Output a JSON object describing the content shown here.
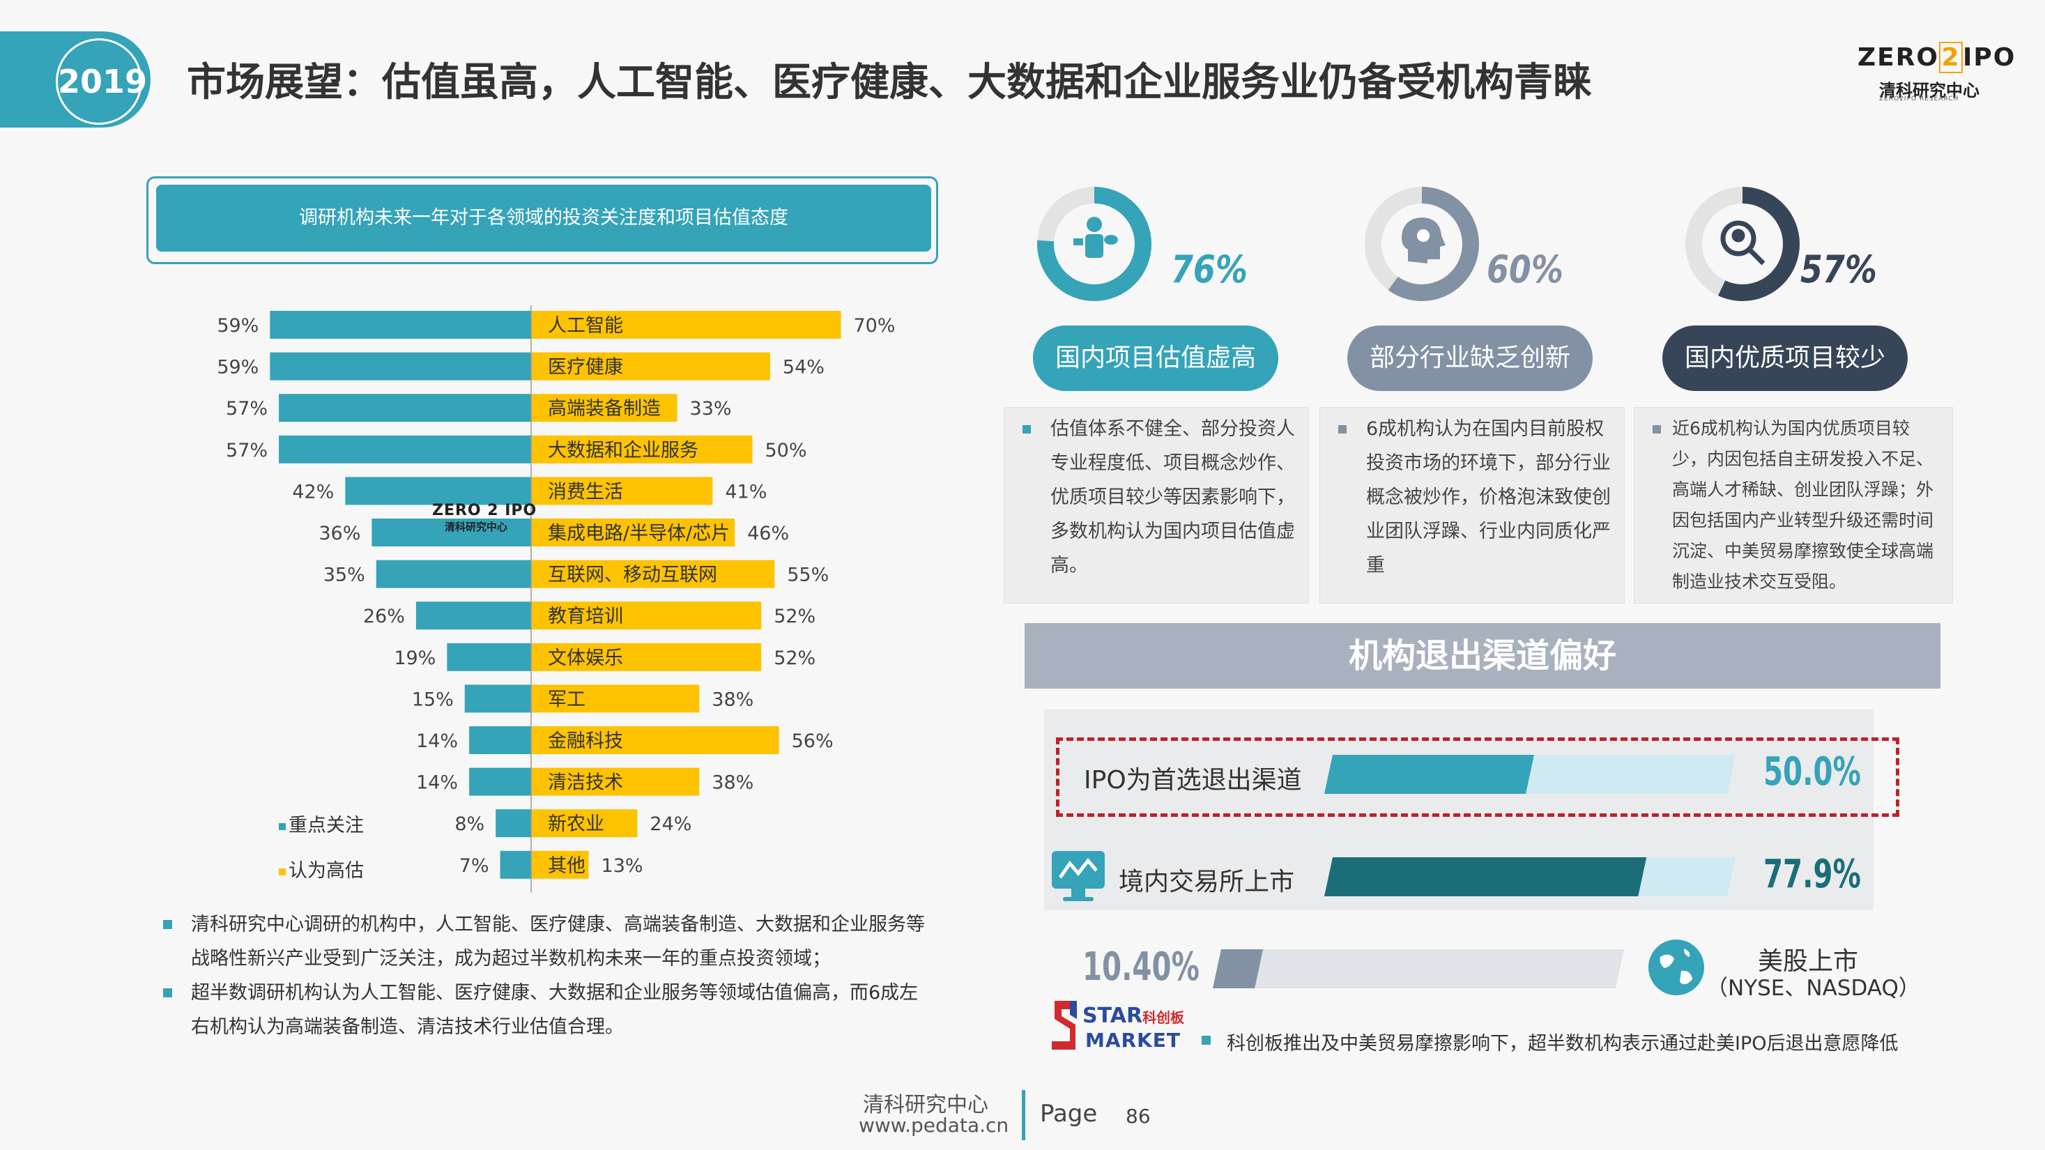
{
  "header": {
    "year": "2019",
    "title": "市场展望：估值虽高，人工智能、医疗健康、大数据和企业服务业仍备受机构青睐",
    "logo_main_left": "ZERO",
    "logo_main_mid": "2",
    "logo_main_right": "IPO",
    "logo_sub": "清科研究中心",
    "logo_tiny": "ZERO2IPO RESEARCH"
  },
  "chart_data": {
    "type": "bar",
    "title": "调研机构未来一年对于各领域的投资关注度和项目估值态度",
    "categories": [
      "人工智能",
      "医疗健康",
      "高端装备制造",
      "大数据和企业服务",
      "消费生活",
      "集成电路/半导体/芯片",
      "互联网、移动互联网",
      "教育培训",
      "文体娱乐",
      "军工",
      "金融科技",
      "清洁技术",
      "新农业",
      "其他"
    ],
    "series": [
      {
        "name": "重点关注",
        "color": "#35a3b8",
        "values": [
          59,
          59,
          57,
          57,
          42,
          36,
          35,
          26,
          19,
          15,
          14,
          14,
          8,
          7
        ],
        "labels": [
          "59%",
          "59%",
          "57%",
          "57%",
          "42%",
          "36%",
          "35%",
          "26%",
          "19%",
          "15%",
          "14%",
          "14%",
          "8%",
          "7%"
        ]
      },
      {
        "name": "认为高估",
        "color": "#fdc300",
        "values": [
          70,
          54,
          33,
          50,
          41,
          46,
          55,
          52,
          52,
          38,
          56,
          38,
          24,
          13
        ],
        "labels": [
          "70%",
          "54%",
          "33%",
          "50%",
          "41%",
          "46%",
          "55%",
          "52%",
          "52%",
          "38%",
          "56%",
          "38%",
          "24%",
          "13%"
        ]
      }
    ],
    "legend_position": "bottom-left"
  },
  "watermark": {
    "line1": "ZERO 2 IPO",
    "line2": "清科研究中心"
  },
  "notes": [
    "清科研究中心调研的机构中，人工智能、医疗健康、高端装备制造、大数据和企业服务等战略性新兴产业受到广泛关注，成为超过半数机构未来一年的重点投资领域；",
    "超半数调研机构认为人工智能、医疗健康、大数据和企业服务等领域估值偏高，而6成左右机构认为高端装备制造、清洁技术行业估值合理。"
  ],
  "donuts": [
    {
      "value": 76,
      "label": "76%",
      "color": "#35a3b8",
      "icon": "business-person-icon",
      "pill": "国内项目估值虚高",
      "pill_color": "#35a3b8",
      "text": "估值体系不健全、部分投资人专业程度低、项目概念炒作、优质项目较少等因素影响下，多数机构认为国内项目估值虚高。"
    },
    {
      "value": 60,
      "label": "60%",
      "color": "#8391a5",
      "icon": "head-lightbulb-icon",
      "pill": "部分行业缺乏创新",
      "pill_color": "#8391a5",
      "text": "6成机构认为在国内目前股权投资市场的环境下，部分行业概念被炒作，价格泡沫致使创业团队浮躁、行业内同质化严重"
    },
    {
      "value": 57,
      "label": "57%",
      "color": "#374558",
      "icon": "search-location-icon",
      "pill": "国内优质项目较少",
      "pill_color": "#374558",
      "text": "近6成机构认为国内优质项目较少，内因包括自主研发投入不足、高端人才稀缺、创业团队浮躁；外因包括国内产业转型升级还需时间沉淀、中美贸易摩擦致使全球高端制造业技术交互受阻。"
    }
  ],
  "exit": {
    "heading": "机构退出渠道偏好",
    "rows": [
      {
        "label": "IPO为首选退出渠道",
        "value": 50.0,
        "label_pct": "50.0%",
        "color": "#35a3b8"
      },
      {
        "label": "境内交易所上市",
        "value": 77.9,
        "label_pct": "77.9%",
        "color": "#1b6e79",
        "icon": "exchange-monitor-icon"
      },
      {
        "label": "美股上市",
        "label2": "（NYSE、NASDAQ）",
        "value": 10.4,
        "label_pct": "10.40%",
        "color": "#8391a5",
        "icon": "globe-icon"
      }
    ],
    "star_logo_main": "STAR",
    "star_logo_sub": "MARKET",
    "star_logo_cn": "科创板",
    "star_note": "科创板推出及中美贸易摩擦影响下，超半数机构表示通过赴美IPO后退出意愿降低"
  },
  "footer": {
    "org": "清科研究中心",
    "url": "www.pedata.cn",
    "page_label": "Page",
    "page_num": "86"
  }
}
